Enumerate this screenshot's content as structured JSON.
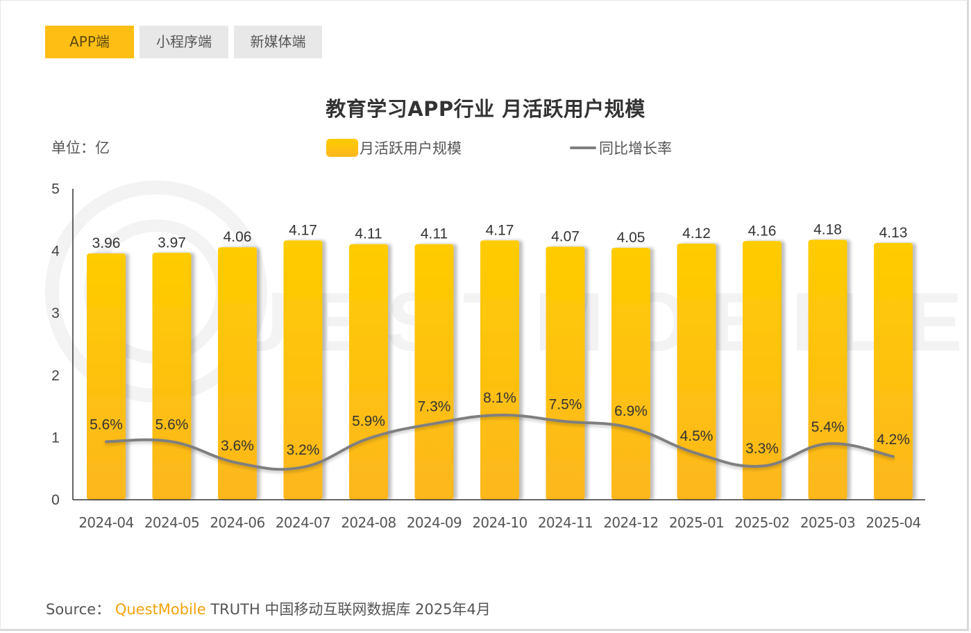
{
  "tabs": [
    {
      "label": "APP端",
      "active": true
    },
    {
      "label": "小程序端",
      "active": false
    },
    {
      "label": "新媒体端",
      "active": false
    }
  ],
  "unit_label": "单位：亿",
  "legend": {
    "bar_label": "月活跃用户规模",
    "line_label": "同比增长率"
  },
  "source": {
    "prefix": "Source：",
    "brand": "QuestMobile",
    "rest": "TRUTH 中国移动互联网数据库 2025年4月"
  },
  "watermark": "QUESTMOBILE",
  "colors": {
    "bar_top": "#ffcc00",
    "bar_bottom": "#fdb71e",
    "line": "#7f7f7f",
    "active_tab": "#ffbe14",
    "inactive_tab": "#e8e8e8",
    "brand": "#f5a20a"
  },
  "chart_data": {
    "type": "bar",
    "title": "教育学习APP行业 月活跃用户规模",
    "xlabel": "",
    "ylabel": "单位：亿",
    "ylim": [
      0,
      5
    ],
    "yticks": [
      0,
      1,
      2,
      3,
      4,
      5
    ],
    "grid": false,
    "legend_position": "top",
    "categories": [
      "2024-04",
      "2024-05",
      "2024-06",
      "2024-07",
      "2024-08",
      "2024-09",
      "2024-10",
      "2024-11",
      "2024-12",
      "2025-01",
      "2025-02",
      "2025-03",
      "2025-04"
    ],
    "series": [
      {
        "name": "月活跃用户规模",
        "type": "bar",
        "unit": "亿",
        "values": [
          3.96,
          3.97,
          4.06,
          4.17,
          4.11,
          4.11,
          4.17,
          4.07,
          4.05,
          4.12,
          4.16,
          4.18,
          4.13
        ],
        "labels": [
          "3.96",
          "3.97",
          "4.06",
          "4.17",
          "4.11",
          "4.11",
          "4.17",
          "4.07",
          "4.05",
          "4.12",
          "4.16",
          "4.18",
          "4.13"
        ]
      },
      {
        "name": "同比增长率",
        "type": "line",
        "unit": "%",
        "axis": "secondary",
        "values": [
          5.6,
          5.6,
          3.6,
          3.2,
          5.9,
          7.3,
          8.1,
          7.5,
          6.9,
          4.5,
          3.3,
          5.4,
          4.2
        ],
        "labels": [
          "5.6%",
          "5.6%",
          "3.6%",
          "3.2%",
          "5.9%",
          "7.3%",
          "8.1%",
          "7.5%",
          "6.9%",
          "4.5%",
          "3.3%",
          "5.4%",
          "4.2%"
        ]
      }
    ]
  }
}
